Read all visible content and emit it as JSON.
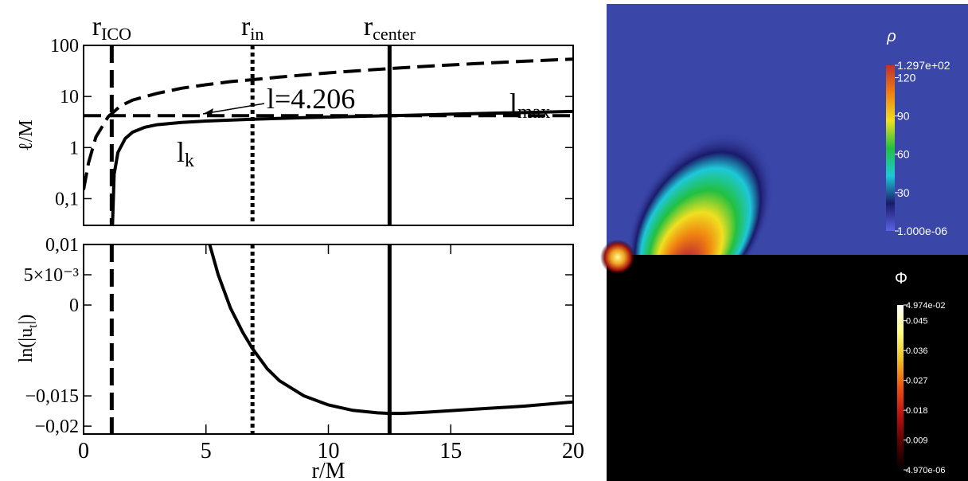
{
  "chart_data": [
    {
      "type": "line",
      "ylabel": "ℓ/M",
      "log_y": true,
      "xlim": [
        0,
        20
      ],
      "ylim": [
        0.03,
        100
      ],
      "yticks": [
        100,
        10,
        1,
        {
          "value": 0.1,
          "label": "0,1"
        }
      ],
      "vlines": [
        {
          "x": 1.15,
          "label": [
            "r",
            "ICO"
          ],
          "style": "dashed"
        },
        {
          "x": 6.9,
          "label": [
            "r",
            "in"
          ],
          "style": "dotted"
        },
        {
          "x": 12.5,
          "label": [
            "r",
            "center"
          ],
          "style": "solid"
        }
      ],
      "series": [
        {
          "label": [
            "l",
            "max"
          ],
          "color": "#000000",
          "style": "dashed",
          "x": [
            0,
            0.2,
            0.5,
            1,
            1.5,
            2,
            3,
            4,
            5,
            6,
            7,
            8,
            10,
            12,
            14,
            16,
            18,
            20
          ],
          "values": [
            0.15,
            0.5,
            1.6,
            4,
            6.5,
            8.5,
            11.5,
            14.5,
            17,
            19.5,
            21.5,
            24,
            29,
            34,
            39,
            44,
            49,
            54
          ]
        },
        {
          "label": [
            "l=4.206"
          ],
          "color": "#000000",
          "style": "dashed",
          "x": [
            0,
            20
          ],
          "values": [
            4.206,
            4.206
          ]
        },
        {
          "label": [
            "l",
            "k"
          ],
          "color": "#000000",
          "style": "solid",
          "x": [
            1.18,
            1.25,
            1.4,
            1.7,
            2,
            2.5,
            3,
            4,
            5,
            7,
            9,
            12.5,
            15,
            20
          ],
          "values": [
            0.03,
            0.3,
            0.8,
            1.5,
            2,
            2.5,
            2.8,
            3.1,
            3.3,
            3.6,
            3.85,
            4.206,
            4.5,
            5.1
          ]
        }
      ]
    },
    {
      "type": "line",
      "xlabel": "r/M",
      "ylabel": [
        "ln(|u",
        "t",
        "|)"
      ],
      "xlim": [
        0,
        20
      ],
      "ylim": [
        -0.0213,
        0.01
      ],
      "xticks": [
        0,
        5,
        10,
        15,
        20
      ],
      "yticks": [
        {
          "value": 0.01,
          "label": "0,01"
        },
        {
          "value": 0.005,
          "label": "5×10⁻³"
        },
        0,
        {
          "value": -0.015,
          "label": "−0,015"
        },
        {
          "value": -0.02,
          "label": "−0,02"
        }
      ],
      "vlines": [
        {
          "x": 1.15,
          "style": "dashed"
        },
        {
          "x": 6.9,
          "style": "dotted"
        },
        {
          "x": 12.5,
          "style": "solid"
        }
      ],
      "series": [
        {
          "color": "#000000",
          "style": "solid",
          "x": [
            5.15,
            5.5,
            6,
            6.5,
            6.9,
            7.5,
            8,
            9,
            10,
            11,
            12,
            12.5,
            13,
            14,
            16,
            18,
            20
          ],
          "values": [
            0.01,
            0.005,
            -0.0005,
            -0.0045,
            -0.0072,
            -0.0105,
            -0.0125,
            -0.015,
            -0.0165,
            -0.0174,
            -0.0178,
            -0.0179,
            -0.0179,
            -0.0177,
            -0.0172,
            -0.0167,
            -0.016
          ]
        }
      ]
    },
    {
      "type": "heatmap",
      "colorbar_label": "ρ",
      "clim": [
        1e-06,
        129.7
      ],
      "colormap": [
        "#5b63e6",
        "#1a1a6a",
        "#1ec8d8",
        "#22c040",
        "#f0e020",
        "#f08010",
        "#c03030"
      ],
      "cticks": [
        {
          "value": 129.7,
          "label": "1.297e+02"
        },
        120,
        90,
        60,
        30,
        {
          "value": 1e-06,
          "label": "1.000e-06"
        }
      ]
    },
    {
      "type": "heatmap",
      "colorbar_label": "Φ",
      "clim": [
        4.97e-06,
        0.04974
      ],
      "colormap": [
        "#000000",
        "#5a0000",
        "#c01010",
        "#f05010",
        "#f0c020",
        "#ffff80",
        "#ffffff"
      ],
      "cticks": [
        {
          "value": 0.04974,
          "label": "4.974e-02"
        },
        0.045,
        0.036,
        0.027,
        0.018,
        0.009,
        {
          "value": 4.97e-06,
          "label": "4.970e-06"
        }
      ]
    }
  ]
}
